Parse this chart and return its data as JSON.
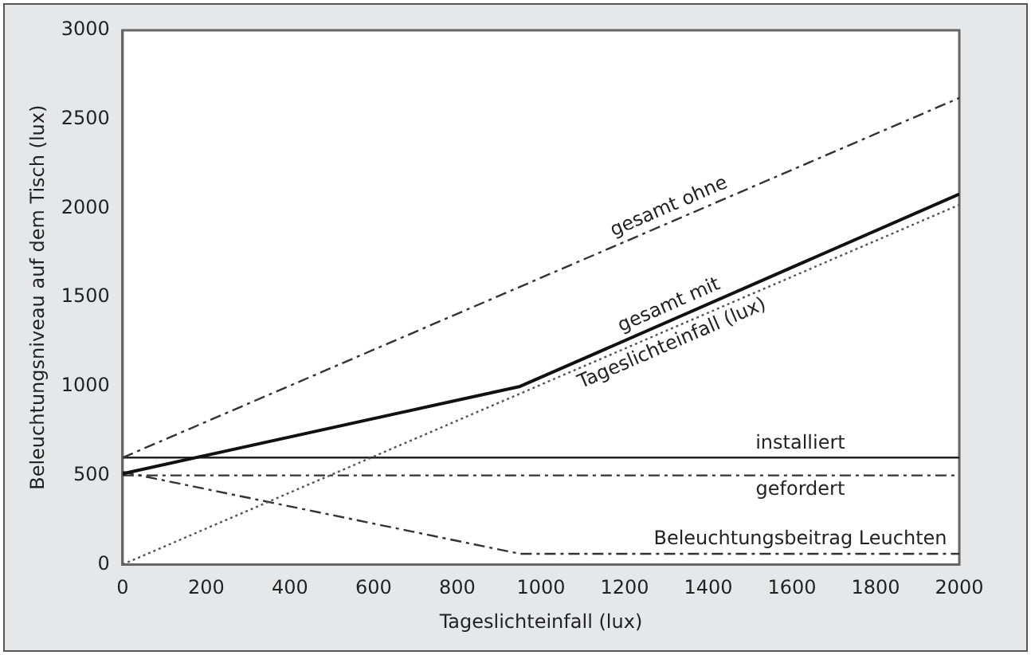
{
  "chart_data": {
    "type": "line",
    "xlabel": "Tageslichteinfall (lux)",
    "ylabel": "Beleuchtungsniveau auf dem Tisch (lux)",
    "xlim": [
      0,
      2000
    ],
    "xticks": [
      0,
      200,
      400,
      600,
      800,
      1000,
      1200,
      1400,
      1600,
      1800,
      2000
    ],
    "ylim": [
      0,
      3000
    ],
    "yticks": [
      0,
      500,
      1000,
      1500,
      2000,
      2500,
      3000
    ],
    "grid": false,
    "legend": false,
    "marker": "none",
    "series": [
      {
        "name": "gesamt ohne",
        "color": "#333333",
        "line_style": "dashed",
        "x": [
          0,
          2000
        ],
        "values": [
          600,
          2620
        ]
      },
      {
        "name": "gesamt mit",
        "color": "#111111",
        "line_style": "solid",
        "x": [
          0,
          950,
          2000
        ],
        "values": [
          510,
          1000,
          2080
        ]
      },
      {
        "name": "Tageslichteinfall (lux)",
        "color": "#555555",
        "line_style": "dotted",
        "x": [
          0,
          2000
        ],
        "values": [
          0,
          2020
        ]
      },
      {
        "name": "installiert",
        "color": "#222222",
        "line_style": "solid",
        "x": [
          0,
          2000
        ],
        "values": [
          600,
          600
        ]
      },
      {
        "name": "gefordert",
        "color": "#333333",
        "line_style": "dashed",
        "x": [
          0,
          2000
        ],
        "values": [
          500,
          500
        ]
      },
      {
        "name": "Beleuchtungsbeitrag Leuchten",
        "color": "#333333",
        "line_style": "dashed",
        "x": [
          0,
          950,
          2000
        ],
        "values": [
          520,
          60,
          60
        ]
      }
    ]
  }
}
